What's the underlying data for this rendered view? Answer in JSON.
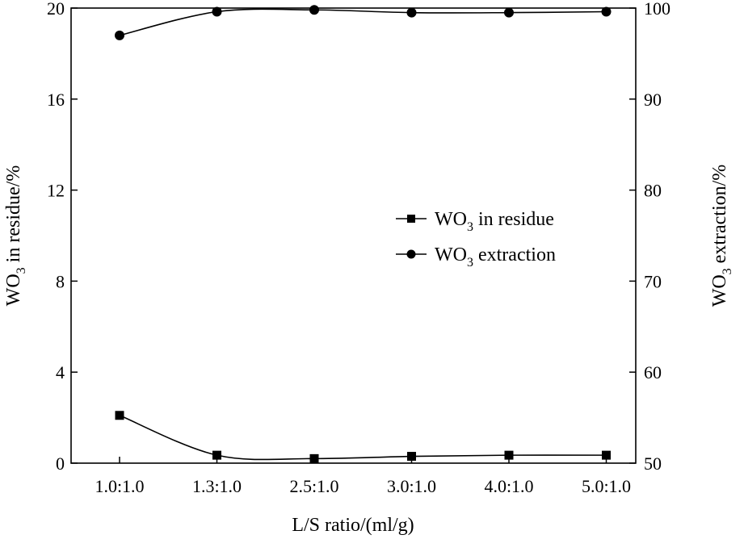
{
  "chart_data": {
    "type": "line",
    "x_label": "L/S ratio/(ml/g)",
    "categories": [
      "1.0:1.0",
      "1.3:1.0",
      "2.5:1.0",
      "3.0:1.0",
      "4.0:1.0",
      "5.0:1.0"
    ],
    "y_left": {
      "label_prefix": "WO",
      "label_sub": "3",
      "label_suffix": " in residue/%",
      "range": [
        0,
        20
      ],
      "ticks": [
        0,
        4,
        8,
        12,
        16,
        20
      ]
    },
    "y_right": {
      "label_prefix": "WO",
      "label_sub": "3",
      "label_suffix": " extraction/%",
      "range": [
        50,
        100
      ],
      "ticks": [
        50,
        60,
        70,
        80,
        90,
        100
      ]
    },
    "series": [
      {
        "name_prefix": "WO",
        "name_sub": "3",
        "name_suffix": " in residue",
        "axis": "left",
        "marker": "square",
        "values": [
          2.1,
          0.35,
          0.2,
          0.3,
          0.35,
          0.35
        ]
      },
      {
        "name_prefix": "WO",
        "name_sub": "3",
        "name_suffix": " extraction",
        "axis": "right",
        "marker": "circle",
        "values": [
          97.0,
          99.6,
          99.8,
          99.5,
          99.5,
          99.6
        ]
      }
    ],
    "legend_position": "center-right",
    "grid": false
  }
}
